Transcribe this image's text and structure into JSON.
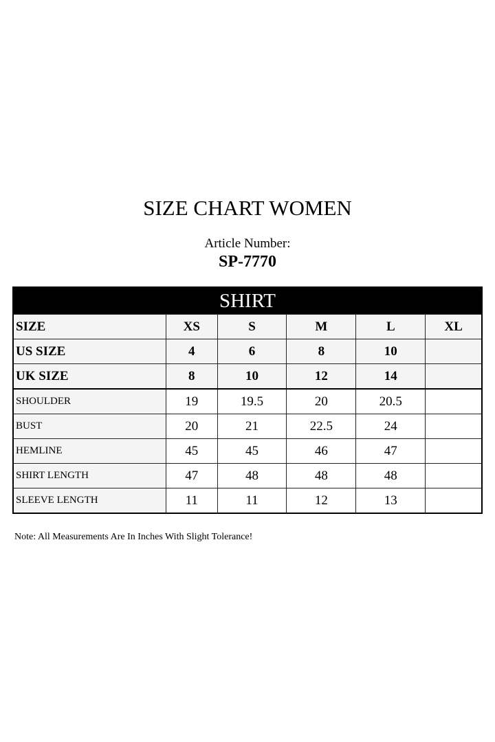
{
  "title": "SIZE CHART WOMEN",
  "article_label": "Article Number:",
  "article_number": "SP-7770",
  "table": {
    "section": "SHIRT",
    "header_rows": [
      {
        "label": "SIZE",
        "values": [
          "XS",
          "S",
          "M",
          "L",
          "XL"
        ]
      },
      {
        "label": "US SIZE",
        "values": [
          "4",
          "6",
          "8",
          "10",
          ""
        ]
      },
      {
        "label": "UK SIZE",
        "values": [
          "8",
          "10",
          "12",
          "14",
          ""
        ]
      }
    ],
    "rows": [
      {
        "label": "SHOULDER",
        "values": [
          "19",
          "19.5",
          "20",
          "20.5",
          ""
        ]
      },
      {
        "label": "BUST",
        "values": [
          "20",
          "21",
          "22.5",
          "24",
          ""
        ]
      },
      {
        "label": "HEMLINE",
        "values": [
          "45",
          "45",
          "46",
          "47",
          ""
        ]
      },
      {
        "label": "SHIRT LENGTH",
        "values": [
          "47",
          "48",
          "48",
          "48",
          ""
        ]
      },
      {
        "label": "SLEEVE LENGTH",
        "values": [
          "11",
          "11",
          "12",
          "13",
          ""
        ]
      }
    ]
  },
  "note": "Note: All Measurements Are In Inches With Slight Tolerance!"
}
